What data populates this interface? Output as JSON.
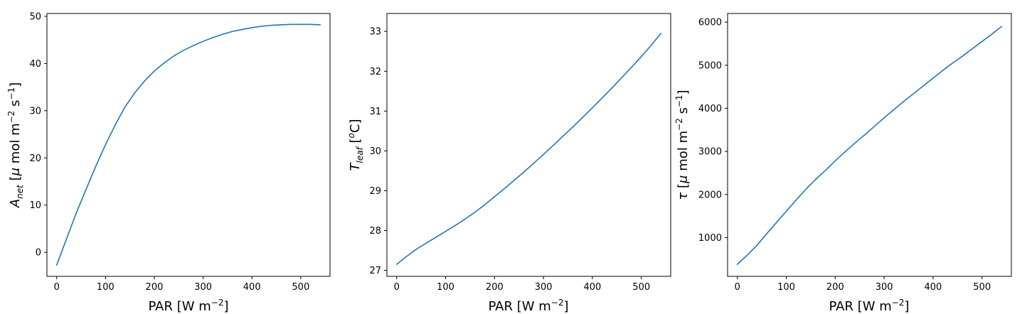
{
  "chart_data": [
    {
      "type": "line",
      "xlabel": "PAR [W m^-2]",
      "ylabel": "A_net [μ mol m^-2 s^-1]",
      "xlim": [
        -20,
        560
      ],
      "ylim": [
        -5.1,
        50.6
      ],
      "xticks": [
        0,
        100,
        200,
        300,
        400,
        500
      ],
      "yticks": [
        0,
        10,
        20,
        30,
        40,
        50
      ],
      "color": "#1f77b4",
      "grid": false,
      "series": [
        {
          "x": [
            0,
            20,
            40,
            60,
            80,
            100,
            120,
            140,
            160,
            180,
            200,
            220,
            240,
            260,
            280,
            300,
            320,
            340,
            360,
            380,
            400,
            420,
            440,
            460,
            480,
            500,
            520,
            540
          ],
          "y": [
            -2.7,
            2.8,
            8.3,
            13.3,
            18.2,
            22.8,
            27.0,
            30.8,
            33.8,
            36.3,
            38.4,
            40.1,
            41.6,
            42.8,
            43.8,
            44.7,
            45.5,
            46.2,
            46.8,
            47.2,
            47.6,
            47.9,
            48.1,
            48.2,
            48.3,
            48.3,
            48.3,
            48.2
          ]
        }
      ]
    },
    {
      "type": "line",
      "xlabel": "PAR [W m^-2]",
      "ylabel": "T_leaf [^oC]",
      "xlim": [
        -20,
        560
      ],
      "ylim": [
        26.85,
        33.45
      ],
      "xticks": [
        0,
        100,
        200,
        300,
        400,
        500
      ],
      "yticks": [
        27,
        28,
        29,
        30,
        31,
        32,
        33
      ],
      "color": "#1f77b4",
      "grid": false,
      "series": [
        {
          "x": [
            0,
            20,
            40,
            60,
            80,
            100,
            120,
            140,
            160,
            180,
            200,
            220,
            240,
            260,
            280,
            300,
            320,
            340,
            360,
            380,
            400,
            420,
            440,
            460,
            480,
            500,
            520,
            540
          ],
          "y": [
            27.15,
            27.35,
            27.53,
            27.68,
            27.83,
            27.98,
            28.13,
            28.29,
            28.46,
            28.65,
            28.85,
            29.05,
            29.26,
            29.47,
            29.69,
            29.91,
            30.14,
            30.37,
            30.6,
            30.84,
            31.08,
            31.33,
            31.58,
            31.84,
            32.1,
            32.37,
            32.65,
            32.95
          ]
        }
      ]
    },
    {
      "type": "line",
      "xlabel": "PAR [W m^-2]",
      "ylabel": "τ [μ mol m^-2 s^-1]",
      "xlim": [
        -20,
        560
      ],
      "ylim": [
        100,
        6200
      ],
      "xticks": [
        0,
        100,
        200,
        300,
        400,
        500
      ],
      "yticks": [
        1000,
        2000,
        3000,
        4000,
        5000,
        6000
      ],
      "color": "#1f77b4",
      "grid": false,
      "series": [
        {
          "x": [
            0,
            20,
            40,
            60,
            80,
            100,
            120,
            140,
            160,
            180,
            200,
            220,
            240,
            260,
            280,
            300,
            320,
            340,
            360,
            380,
            400,
            420,
            440,
            460,
            480,
            500,
            520,
            540
          ],
          "y": [
            380,
            590,
            820,
            1090,
            1350,
            1610,
            1870,
            2120,
            2350,
            2560,
            2780,
            2990,
            3190,
            3380,
            3580,
            3780,
            3970,
            4160,
            4340,
            4520,
            4700,
            4880,
            5050,
            5210,
            5380,
            5550,
            5720,
            5900
          ]
        }
      ]
    }
  ]
}
